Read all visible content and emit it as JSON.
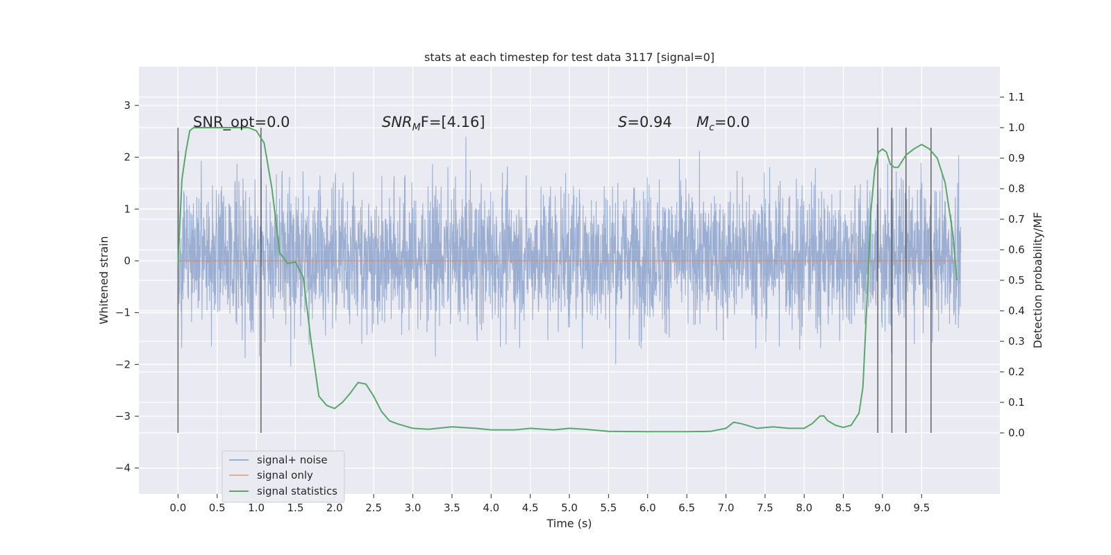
{
  "chart_data": {
    "type": "line",
    "title": "stats at each timestep for test data 3117 [signal=0]",
    "xlabel": "Time (s)",
    "ylabel": "Whitened strain",
    "y2label": "Detection probability/MF",
    "xlim": [
      -0.5,
      10.5
    ],
    "ylim": [
      -4.5,
      3.75
    ],
    "y2lim": [
      -0.2,
      1.2
    ],
    "x_ticks": [
      "0.0",
      "0.5",
      "1.0",
      "1.5",
      "2.0",
      "2.5",
      "3.0",
      "3.5",
      "4.0",
      "4.5",
      "5.0",
      "5.5",
      "6.0",
      "6.5",
      "7.0",
      "7.5",
      "8.0",
      "8.5",
      "9.0",
      "9.5"
    ],
    "y_ticks": [
      "3",
      "2",
      "1",
      "0",
      "−1",
      "−2",
      "−3",
      "−4"
    ],
    "y2_ticks": [
      "1.1",
      "1.0",
      "0.9",
      "0.8",
      "0.7",
      "0.6",
      "0.5",
      "0.4",
      "0.3",
      "0.2",
      "0.1",
      "0.0"
    ],
    "grid": true,
    "legend_position": "lower-left",
    "annotations": {
      "snr_opt": "SNR_opt=0.0",
      "snr_mf_base": "SNR",
      "snr_mf_sub": "M",
      "snr_mf_rest": "F=[4.16]",
      "s_var": "S",
      "s_rest": "=0.94",
      "mc_var": "M",
      "mc_sub": "c",
      "mc_rest": "=0.0"
    },
    "series": [
      {
        "name": "signal+ noise",
        "color": "#4c72b0",
        "x_range": [
          0.0,
          10.0
        ],
        "upper_envelope_approx": 2.4,
        "lower_envelope_approx": -2.2
      },
      {
        "name": "signal only",
        "color": "#dd8452",
        "x": [
          0.0,
          9.99
        ],
        "y": [
          0.0,
          0.0
        ]
      },
      {
        "name": "signal statistics",
        "color": "#55a868",
        "axis": "right",
        "x": [
          0.0,
          0.05,
          0.1,
          0.15,
          0.2,
          0.3,
          0.5,
          0.7,
          0.9,
          1.0,
          1.1,
          1.2,
          1.3,
          1.4,
          1.5,
          1.6,
          1.7,
          1.8,
          1.9,
          2.0,
          2.1,
          2.2,
          2.3,
          2.4,
          2.5,
          2.6,
          2.7,
          2.8,
          3.0,
          3.2,
          3.5,
          3.8,
          4.0,
          4.3,
          4.5,
          4.8,
          5.0,
          5.2,
          5.5,
          6.0,
          6.5,
          6.8,
          7.0,
          7.1,
          7.2,
          7.4,
          7.6,
          7.8,
          8.0,
          8.1,
          8.2,
          8.25,
          8.3,
          8.4,
          8.5,
          8.6,
          8.7,
          8.75,
          8.8,
          8.85,
          8.9,
          8.95,
          9.0,
          9.05,
          9.1,
          9.15,
          9.2,
          9.3,
          9.4,
          9.5,
          9.6,
          9.7,
          9.8,
          9.9,
          9.95
        ],
        "y": [
          0.55,
          0.83,
          0.92,
          0.99,
          1.0,
          1.0,
          1.0,
          1.0,
          1.0,
          0.99,
          0.95,
          0.8,
          0.59,
          0.555,
          0.56,
          0.51,
          0.3,
          0.12,
          0.09,
          0.08,
          0.1,
          0.13,
          0.165,
          0.16,
          0.12,
          0.07,
          0.04,
          0.03,
          0.015,
          0.012,
          0.02,
          0.015,
          0.01,
          0.01,
          0.015,
          0.01,
          0.015,
          0.012,
          0.005,
          0.004,
          0.004,
          0.005,
          0.015,
          0.035,
          0.03,
          0.015,
          0.02,
          0.015,
          0.015,
          0.03,
          0.055,
          0.056,
          0.04,
          0.025,
          0.018,
          0.025,
          0.065,
          0.15,
          0.42,
          0.72,
          0.86,
          0.92,
          0.93,
          0.92,
          0.88,
          0.87,
          0.87,
          0.91,
          0.93,
          0.945,
          0.93,
          0.9,
          0.82,
          0.65,
          0.5
        ]
      }
    ],
    "vlines": [
      0.0,
      1.06,
      8.94,
      9.12,
      9.3,
      9.62
    ]
  }
}
